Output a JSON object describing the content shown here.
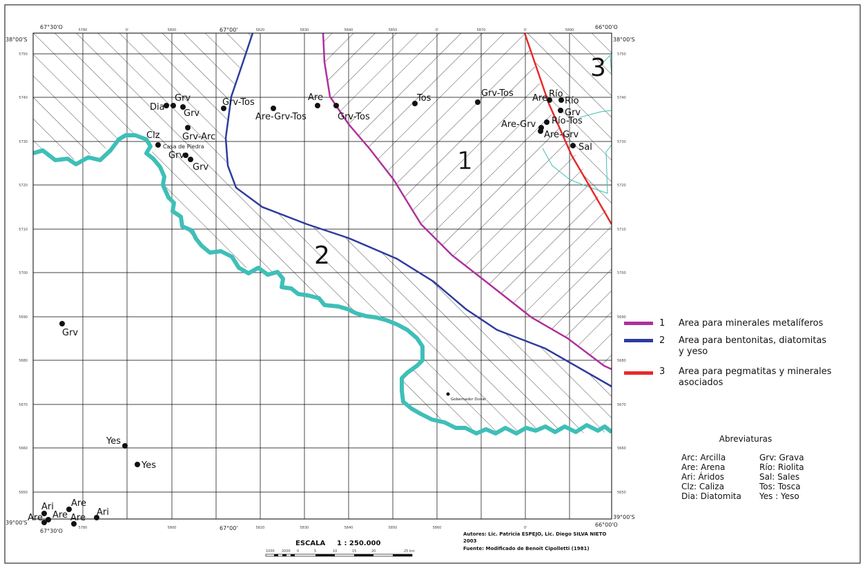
{
  "corners": {
    "tl_lon": "67°30'O",
    "tl_lat": "38°00'S",
    "top_mid_lon": "67°00'",
    "tr_lon": "66°00'O",
    "tr_lat": "38°00'S",
    "bl_lat": "39°00'S",
    "bl_lon": "67°30'O",
    "bottom_mid_lon": "67°00'",
    "br_lon": "66°00'O",
    "br_lat": "39°00'S"
  },
  "area_numbers": [
    "1",
    "2",
    "3"
  ],
  "sites": [
    {
      "label": "Grv",
      "type": "Grava"
    },
    {
      "label": "Dia",
      "type": "Diatomita"
    },
    {
      "label": "Grv",
      "type": "Grava"
    },
    {
      "label": "Grv-Arc",
      "type": "Grava-Arcilla"
    },
    {
      "label": "Clz",
      "type": "Caliza"
    },
    {
      "label": "Casa de Piedra",
      "type": "locality"
    },
    {
      "label": "Grv",
      "type": "Grava"
    },
    {
      "label": "Grv",
      "type": "Grava"
    },
    {
      "label": "Grv-Tos",
      "type": "Grava-Tosca"
    },
    {
      "label": "Are",
      "type": "Arena"
    },
    {
      "label": "Are-Grv-Tos",
      "type": "Arena-Grava-Tosca"
    },
    {
      "label": "Grv-Tos",
      "type": "Grava-Tosca"
    },
    {
      "label": "Tos",
      "type": "Tosca"
    },
    {
      "label": "Grv-Tos",
      "type": "Grava-Tosca"
    },
    {
      "label": "Are",
      "type": "Arena"
    },
    {
      "label": "Río",
      "type": "Riolita"
    },
    {
      "label": "Río",
      "type": "Riolita"
    },
    {
      "label": "Grv",
      "type": "Grava"
    },
    {
      "label": "Are-Grv",
      "type": "Arena-Grava"
    },
    {
      "label": "Río-Tos",
      "type": "Riolita-Tosca"
    },
    {
      "label": "Are-Grv",
      "type": "Arena-Grava"
    },
    {
      "label": "Sal",
      "type": "Sales"
    },
    {
      "label": "Grv",
      "type": "Grava"
    },
    {
      "label": "Gobernador Duval",
      "type": "locality"
    },
    {
      "label": "Yes",
      "type": "Yeso"
    },
    {
      "label": "Yes",
      "type": "Yeso"
    },
    {
      "label": "Ari",
      "type": "Áridos"
    },
    {
      "label": "Are",
      "type": "Arena"
    },
    {
      "label": "Are",
      "type": "Arena"
    },
    {
      "label": "Are",
      "type": "Arena"
    },
    {
      "label": "Are",
      "type": "Arena"
    },
    {
      "label": "Ari",
      "type": "Áridos"
    }
  ],
  "legend": [
    {
      "num": "1",
      "line1": "Area para minerales metalíferos",
      "line2": "",
      "color": "#b0309c"
    },
    {
      "num": "2",
      "line1": "Area para bentonitas, diatomitas",
      "line2": "y yeso",
      "color": "#2e3b9e"
    },
    {
      "num": "3",
      "line1": "Area para pegmatitas y minerales",
      "line2": "asociados",
      "color": "#e82a2a"
    }
  ],
  "abbreviations": {
    "title": "Abreviaturas",
    "left": [
      "Arc: Arcilla",
      "Are: Arena",
      "Ari: Áridos",
      "Clz: Caliza",
      "Dia: Diatomita"
    ],
    "right": [
      "Grv: Grava",
      "Río: Riolita",
      "Sal: Sales",
      "Tos: Tosca",
      "Yes : Yeso"
    ]
  },
  "scale": {
    "label": "ESCALA",
    "ratio": "1 : 250.000"
  },
  "credits": {
    "authors": "Autores: Lic. Patricia ESPEJO, Lic. Diego SILVA NIETO",
    "year": "2003",
    "source": "Fuente: Modificado de Benoit Cipolletti (1981)"
  },
  "colors": {
    "reservoir": "#3ebfb8",
    "line_area1": "#b0309c",
    "line_area2": "#2e3b9e",
    "line_area3": "#e82a2a",
    "grid": "#000000"
  }
}
